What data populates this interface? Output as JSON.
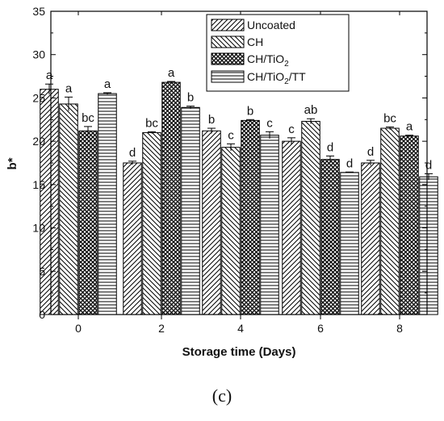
{
  "chart_data": {
    "type": "bar",
    "xlabel": "Storage time (Days)",
    "ylabel": "b*",
    "ylim": [
      0,
      35
    ],
    "yticks": [
      0,
      5,
      10,
      15,
      20,
      25,
      30,
      35
    ],
    "categories": [
      "0",
      "2",
      "4",
      "6",
      "8"
    ],
    "legend_position": "top-right",
    "series": [
      {
        "name": "Uncoated",
        "pattern": "diagonal-up",
        "values": [
          26.0,
          17.5,
          21.2,
          20.0,
          17.5
        ],
        "errors": [
          0.6,
          0.2,
          0.3,
          0.4,
          0.3
        ],
        "labels": [
          "a",
          "d",
          "b",
          "c",
          "d"
        ]
      },
      {
        "name": "CH",
        "pattern": "diagonal-down",
        "values": [
          24.3,
          21.0,
          19.3,
          22.3,
          21.5
        ],
        "errors": [
          0.8,
          0.1,
          0.4,
          0.3,
          0.15
        ],
        "labels": [
          "a",
          "bc",
          "c",
          "ab",
          "bc"
        ]
      },
      {
        "name": "CH/TiO2",
        "pattern": "crosshatch",
        "values": [
          21.2,
          26.8,
          22.4,
          17.9,
          20.6
        ],
        "errors": [
          0.5,
          0.1,
          0.1,
          0.4,
          0.1
        ],
        "labels": [
          "bc",
          "a",
          "b",
          "d",
          "a"
        ]
      },
      {
        "name": "CH/TiO2/TT",
        "pattern": "horizontal",
        "values": [
          25.5,
          23.9,
          20.7,
          16.4,
          15.9
        ],
        "errors": [
          0.1,
          0.15,
          0.4,
          0.05,
          0.35
        ],
        "labels": [
          "a",
          "b",
          "c",
          "d",
          "d"
        ]
      }
    ]
  },
  "legend": {
    "uncoated": "Uncoated",
    "ch": "CH",
    "chtio2_base": "CH/TiO",
    "chtio2_sub": "2",
    "chtt_base": "CH/TiO",
    "chtt_sub": "2",
    "chtt_tail": "/TT"
  },
  "panel_label": "(c)"
}
